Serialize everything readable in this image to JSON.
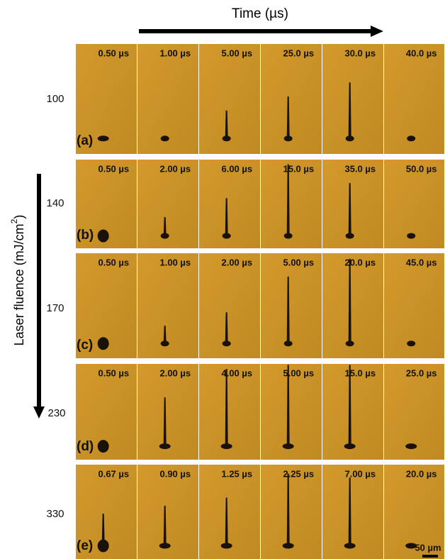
{
  "header": {
    "title": "Time (µs)"
  },
  "y_label": {
    "text": "Laser fluence (mJ/cm",
    "sup": "2",
    "end": ")"
  },
  "rows": [
    {
      "fluence": "100",
      "panel": "(a)",
      "times": [
        "0.50 µs",
        "1.00 µs",
        "5.00 µs",
        "25.0 µs",
        "30.0 µs",
        "40.0 µs"
      ]
    },
    {
      "fluence": "140",
      "panel": "(b)",
      "times": [
        "0.50 µs",
        "2.00 µs",
        "6.00 µs",
        "15.0 µs",
        "35.0 µs",
        "50.0 µs"
      ]
    },
    {
      "fluence": "170",
      "panel": "(c)",
      "times": [
        "0.50 µs",
        "1.00 µs",
        "2.00 µs",
        "5.00 µs",
        "20.0 µs",
        "45.0 µs"
      ]
    },
    {
      "fluence": "230",
      "panel": "(d)",
      "times": [
        "0.50 µs",
        "2.00 µs",
        "4.00 µs",
        "5.00 µs",
        "15.0 µs",
        "25.0 µs"
      ]
    },
    {
      "fluence": "330",
      "panel": "(e)",
      "times": [
        "0.67 µs",
        "0.90 µs",
        "1.25 µs",
        "2.25 µs",
        "7.00 µs",
        "20.0 µs"
      ]
    }
  ],
  "scale_bar": "50 µm"
}
